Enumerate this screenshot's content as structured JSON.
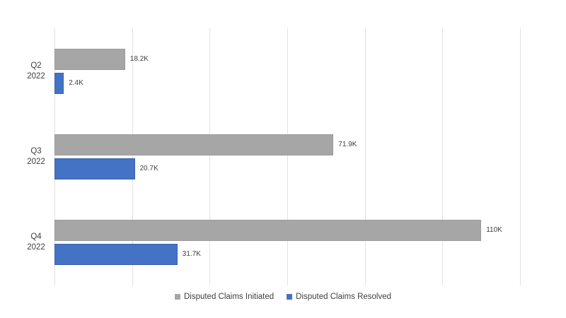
{
  "chart": {
    "background_color": "#ffffff",
    "gridline_color": "#e2e2e2",
    "text_color": "#404040"
  },
  "chart_data": {
    "type": "bar",
    "orientation": "horizontal",
    "title": "",
    "categories": [
      "Q2 2022",
      "Q3 2022",
      "Q4 2022"
    ],
    "category_label_lines": [
      [
        "Q2",
        "2022"
      ],
      [
        "Q3",
        "2022"
      ],
      [
        "Q4",
        "2022"
      ]
    ],
    "series": [
      {
        "name": "Disputed Claims Initiated",
        "color": "#a6a6a6",
        "border_color": "#9b9b9b",
        "values": [
          18200,
          71900,
          110000
        ],
        "value_labels": [
          "18.2K",
          "71.9K",
          "110K"
        ]
      },
      {
        "name": "Disputed Claims Resolved",
        "color": "#4472c4",
        "border_color": "#3a62ad",
        "values": [
          2400,
          20700,
          31700
        ],
        "value_labels": [
          "2.4K",
          "20.7K",
          "31.7K"
        ]
      }
    ],
    "xlim": [
      0,
      120000
    ],
    "gridline_interval": 20000,
    "grid": true,
    "x_tick_labels_visible": false,
    "legend_position": "bottom"
  },
  "legend": {
    "items": [
      {
        "label": "Disputed Claims Initiated",
        "color": "#a6a6a6"
      },
      {
        "label": "Disputed Claims Resolved",
        "color": "#4472c4"
      }
    ]
  }
}
